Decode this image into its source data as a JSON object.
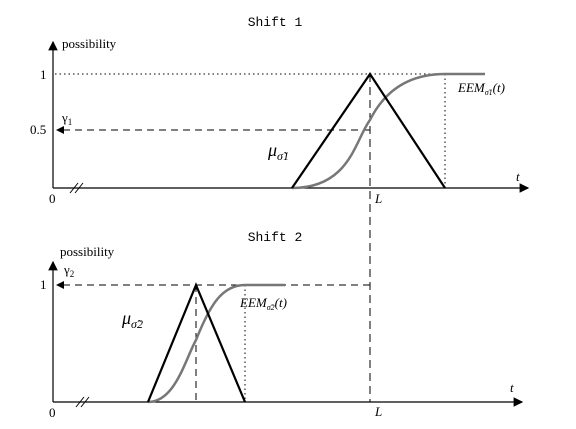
{
  "panels": [
    {
      "title": "Shift 1",
      "y_axis_label": "possibility",
      "x_axis_label": "t",
      "origin": "0",
      "y_ticks": [
        "1",
        "0.5"
      ],
      "gamma": {
        "symbol": "γ",
        "sub": "1"
      },
      "mu": {
        "symbol": "μ",
        "sub": "σ̃1"
      },
      "x_mark": "L",
      "eem": {
        "symbol": "EEM",
        "sub": "σ̃1",
        "arg": "(t)"
      }
    },
    {
      "title": "Shift 2",
      "y_axis_label": "possibility",
      "x_axis_label": "t",
      "origin": "0",
      "y_ticks": [
        "1"
      ],
      "gamma": {
        "symbol": "γ",
        "sub": "2"
      },
      "mu": {
        "symbol": "μ",
        "sub": "σ̃2"
      },
      "x_mark": "L",
      "eem": {
        "symbol": "EEM",
        "sub": "σ̃2",
        "arg": "(t)"
      }
    }
  ]
}
